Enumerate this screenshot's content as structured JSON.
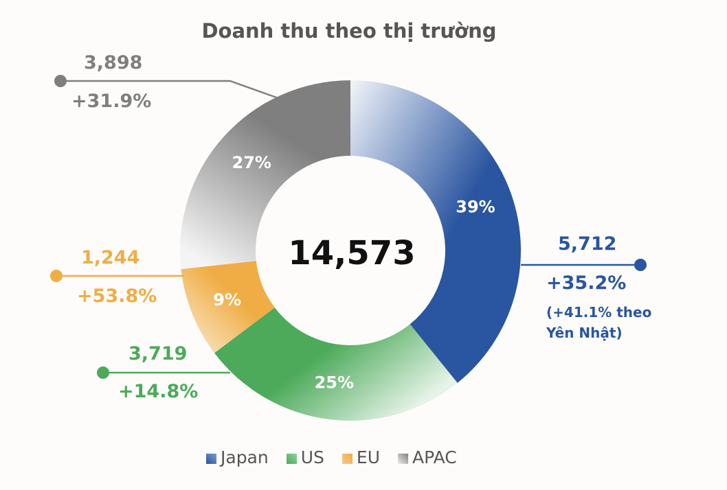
{
  "chart_data": {
    "type": "pie",
    "title": "Doanh thu theo thị trường",
    "total_label": "14,573",
    "categories": [
      "Japan",
      "US",
      "EU",
      "APAC"
    ],
    "values": [
      5712,
      3719,
      1244,
      3898
    ],
    "percent_labels": [
      "39%",
      "25%",
      "9%",
      "27%"
    ],
    "growth_labels": [
      "+35.2%",
      "+14.8%",
      "+53.8%",
      "+31.9%"
    ],
    "value_labels": [
      "5,712",
      "3,719",
      "1,244",
      "3,898"
    ],
    "japan_note": "(+41.1% theo Yên Nhật)",
    "colors": [
      "#2a55a0",
      "#4caa5a",
      "#f0ad45",
      "#7f7f7f"
    ],
    "legend": [
      "Japan",
      "US",
      "EU",
      "APAC"
    ],
    "legend_placement": "bottom"
  }
}
